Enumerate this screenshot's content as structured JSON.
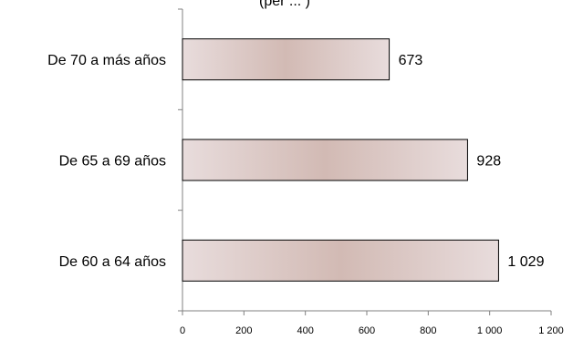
{
  "chart_data": {
    "type": "bar",
    "orientation": "horizontal",
    "title_fragment": "(per ... )",
    "categories": [
      "De 70 a más años",
      "De 65 a 69 años",
      "De 60 a 64 años"
    ],
    "values": [
      673,
      928,
      1029
    ],
    "value_labels": [
      "673",
      "928",
      "1 029"
    ],
    "xlim": [
      0,
      1200
    ],
    "x_ticks": [
      0,
      200,
      400,
      600,
      800,
      1000,
      1200
    ],
    "x_tick_labels": [
      "0",
      "200",
      "400",
      "600",
      "800",
      "1 000",
      "1 200"
    ],
    "xlabel": "",
    "ylabel": "",
    "grid": false,
    "legend": "none",
    "colors": {
      "bar_edge": "#e8dcdc",
      "bar_center": "#d2bab4",
      "bar_stroke": "#000000",
      "axis": "#808080"
    }
  }
}
